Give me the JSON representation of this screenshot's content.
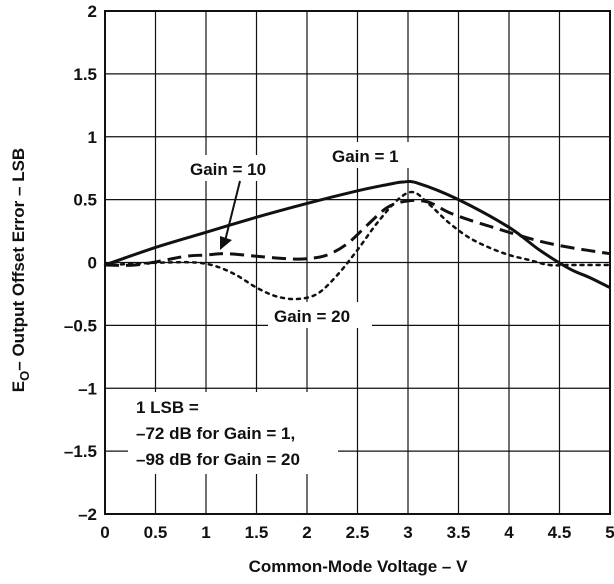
{
  "chart_data": {
    "type": "line",
    "xlabel": "Common-Mode Voltage – V",
    "ylabel_main": "E",
    "ylabel_sub": "O",
    "ylabel_rest": "– Output Offset Error – LSB",
    "xlim": [
      0,
      5
    ],
    "ylim": [
      -2,
      2
    ],
    "grid": true,
    "x_ticks": [
      {
        "v": 0,
        "label": "0"
      },
      {
        "v": 0.5,
        "label": "0.5"
      },
      {
        "v": 1,
        "label": "1"
      },
      {
        "v": 1.5,
        "label": "1.5"
      },
      {
        "v": 2,
        "label": "2"
      },
      {
        "v": 2.5,
        "label": "2.5"
      },
      {
        "v": 3,
        "label": "3"
      },
      {
        "v": 3.5,
        "label": "3.5"
      },
      {
        "v": 4,
        "label": "4"
      },
      {
        "v": 4.5,
        "label": "4.5"
      },
      {
        "v": 5,
        "label": "5"
      }
    ],
    "y_ticks": [
      {
        "v": 2,
        "label": "2"
      },
      {
        "v": 1.5,
        "label": "1.5"
      },
      {
        "v": 1,
        "label": "1"
      },
      {
        "v": 0.5,
        "label": "0.5"
      },
      {
        "v": 0,
        "label": "0"
      },
      {
        "v": -0.5,
        "label": "–0.5"
      },
      {
        "v": -1,
        "label": "–1"
      },
      {
        "v": -1.5,
        "label": "–1.5"
      },
      {
        "v": -2,
        "label": "–2"
      }
    ],
    "series": [
      {
        "name": "Gain = 1",
        "style": "solid",
        "x": [
          0,
          0.5,
          1.0,
          1.5,
          2.0,
          2.5,
          2.8,
          2.95,
          3.1,
          3.5,
          4.0,
          4.3,
          4.6,
          4.8,
          5.0
        ],
        "y": [
          -0.02,
          0.12,
          0.24,
          0.36,
          0.47,
          0.57,
          0.62,
          0.64,
          0.63,
          0.5,
          0.28,
          0.1,
          -0.05,
          -0.12,
          -0.2
        ]
      },
      {
        "name": "Gain = 10",
        "style": "dashed",
        "x": [
          0,
          0.3,
          0.6,
          0.8,
          1.0,
          1.2,
          1.5,
          1.8,
          2.0,
          2.2,
          2.4,
          2.6,
          2.8,
          3.0,
          3.2,
          3.4,
          3.6,
          3.8,
          4.0,
          4.3,
          4.6,
          5.0
        ],
        "y": [
          -0.02,
          -0.02,
          0.02,
          0.05,
          0.06,
          0.07,
          0.05,
          0.03,
          0.03,
          0.06,
          0.15,
          0.3,
          0.44,
          0.49,
          0.48,
          0.4,
          0.34,
          0.29,
          0.24,
          0.17,
          0.12,
          0.07
        ]
      },
      {
        "name": "Gain = 20",
        "style": "dotted",
        "x": [
          0,
          0.3,
          0.6,
          0.9,
          1.1,
          1.3,
          1.5,
          1.7,
          1.9,
          2.1,
          2.3,
          2.5,
          2.7,
          2.9,
          3.05,
          3.2,
          3.4,
          3.6,
          3.8,
          4.0,
          4.2,
          4.4,
          4.6,
          5.0
        ],
        "y": [
          -0.02,
          -0.01,
          0.0,
          0.0,
          -0.03,
          -0.1,
          -0.2,
          -0.27,
          -0.29,
          -0.25,
          -0.1,
          0.1,
          0.32,
          0.5,
          0.56,
          0.47,
          0.32,
          0.2,
          0.12,
          0.06,
          0.02,
          -0.02,
          -0.02,
          -0.02
        ]
      }
    ],
    "annotations": {
      "gain1": "Gain = 1",
      "gain10": "Gain = 10",
      "gain20": "Gain = 20",
      "note_line1": "1 LSB =",
      "note_line2": "–72 dB for Gain = 1,",
      "note_line3": "–98 dB for Gain = 20"
    }
  }
}
